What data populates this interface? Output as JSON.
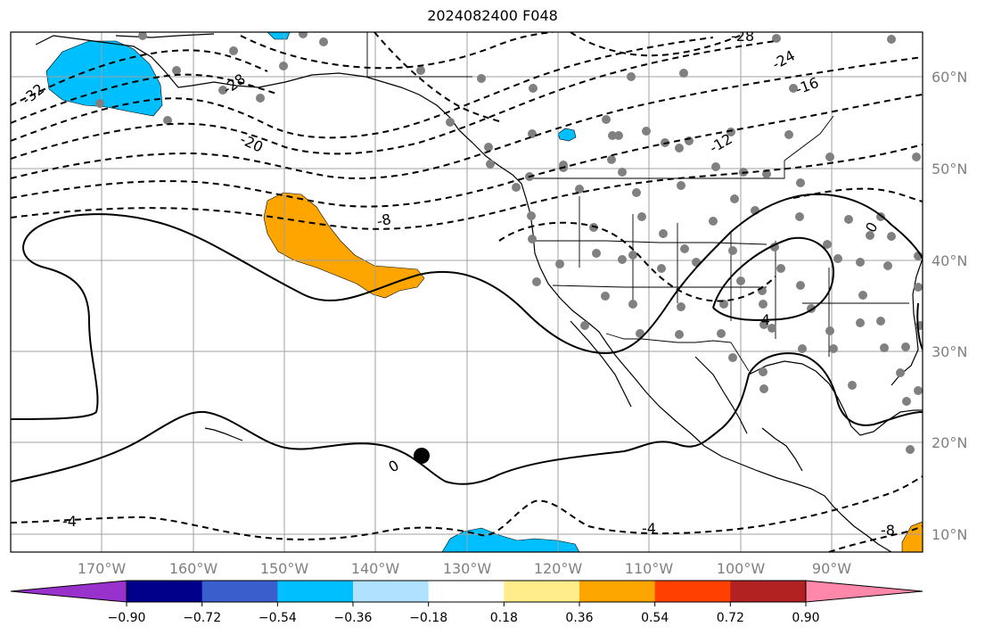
{
  "title": "2024082400 F048",
  "map": {
    "lat_labels": [
      "60°N",
      "50°N",
      "40°N",
      "30°N",
      "20°N",
      "10°N"
    ],
    "lon_labels": [
      "170°W",
      "160°W",
      "150°W",
      "140°W",
      "130°W",
      "120°W",
      "110°W",
      "100°W",
      "90°W"
    ],
    "contour_labels": [
      "-32",
      "-28",
      "-28",
      "-24",
      "-20",
      "-16",
      "-12",
      "-8",
      "-4",
      "0",
      "0",
      "-4",
      "-4",
      "-8"
    ],
    "marker": "black-dot"
  },
  "colorbar": {
    "colors": [
      "#9932cc",
      "#00008b",
      "#3a5fcd",
      "#00bfff",
      "#b0e2ff",
      "#ffffff",
      "#ffec8b",
      "#ffa500",
      "#ff4000",
      "#b22222",
      "#ff88aa"
    ],
    "ticks": [
      "−0.90",
      "−0.72",
      "−0.54",
      "−0.36",
      "−0.18",
      "0.18",
      "0.36",
      "0.54",
      "0.72",
      "0.90"
    ]
  }
}
